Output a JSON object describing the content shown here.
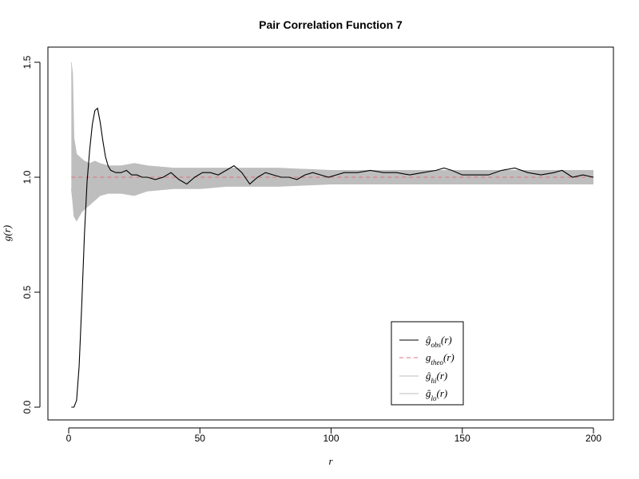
{
  "chart_data": {
    "type": "line",
    "title": "Pair Correlation Function 7",
    "xlabel": "r",
    "ylabel": "g(r)",
    "xlim": [
      0,
      200
    ],
    "ylim": [
      0,
      1.5
    ],
    "x_ticks": [
      0,
      50,
      100,
      150,
      200
    ],
    "x_tick_labels": [
      "0",
      "50",
      "100",
      "150",
      "200"
    ],
    "y_ticks": [
      0.0,
      0.5,
      1.0,
      1.5
    ],
    "y_tick_labels": [
      "0.0",
      "0.5",
      "1.0",
      "1.5"
    ],
    "grid": false,
    "legend_position": "bottom-right",
    "series": [
      {
        "name": "ĝobs(r)",
        "legend_main": "ĝ",
        "legend_sub": "obs",
        "legend_suffix": "(r)",
        "color": "#000000",
        "style": "solid",
        "x": [
          1,
          2,
          3,
          4,
          5,
          6,
          7,
          8,
          9,
          10,
          11,
          12,
          13,
          14,
          15,
          16,
          18,
          20,
          22,
          24,
          26,
          28,
          30,
          33,
          36,
          39,
          42,
          45,
          48,
          51,
          54,
          57,
          60,
          63,
          66,
          69,
          72,
          75,
          78,
          81,
          84,
          87,
          90,
          93,
          96,
          99,
          102,
          105,
          110,
          115,
          120,
          125,
          130,
          135,
          140,
          143,
          146,
          150,
          155,
          160,
          165,
          170,
          175,
          180,
          185,
          188,
          192,
          196,
          200
        ],
        "y": [
          0.0,
          0.0,
          0.03,
          0.18,
          0.45,
          0.75,
          0.98,
          1.12,
          1.23,
          1.29,
          1.3,
          1.24,
          1.16,
          1.09,
          1.05,
          1.03,
          1.02,
          1.02,
          1.03,
          1.01,
          1.01,
          1.0,
          1.0,
          0.99,
          1.0,
          1.02,
          0.99,
          0.97,
          1.0,
          1.02,
          1.02,
          1.01,
          1.03,
          1.05,
          1.02,
          0.97,
          1.0,
          1.02,
          1.01,
          1.0,
          1.0,
          0.99,
          1.01,
          1.02,
          1.01,
          1.0,
          1.01,
          1.02,
          1.02,
          1.03,
          1.02,
          1.02,
          1.01,
          1.02,
          1.03,
          1.04,
          1.03,
          1.01,
          1.01,
          1.01,
          1.03,
          1.04,
          1.02,
          1.01,
          1.02,
          1.03,
          1.0,
          1.01,
          1.0
        ]
      },
      {
        "name": "gtheo(r)",
        "legend_main": "g",
        "legend_sub": "theo",
        "legend_suffix": "(r)",
        "color": "#e0707b",
        "style": "dashed",
        "x": [
          1,
          200
        ],
        "y": [
          1.0,
          1.0
        ]
      },
      {
        "name": "ĝhi(r)",
        "legend_main": "ĝ",
        "legend_sub": "hi",
        "legend_suffix": "(r)",
        "color": "#bebebe",
        "style": "solid",
        "x": [
          1,
          1.5,
          2,
          3,
          4,
          5,
          6,
          8,
          10,
          12,
          15,
          20,
          25,
          30,
          40,
          50,
          60,
          80,
          100,
          120,
          150,
          180,
          200
        ],
        "y": [
          1.5,
          1.45,
          1.17,
          1.1,
          1.09,
          1.08,
          1.07,
          1.06,
          1.07,
          1.06,
          1.05,
          1.05,
          1.06,
          1.05,
          1.04,
          1.04,
          1.04,
          1.04,
          1.03,
          1.03,
          1.03,
          1.03,
          1.03
        ]
      },
      {
        "name": "ĝlo(r)",
        "legend_main": "ĝ",
        "legend_sub": "lo",
        "legend_suffix": "(r)",
        "color": "#bebebe",
        "style": "solid",
        "x": [
          1,
          1.5,
          2,
          3,
          4,
          5,
          6,
          8,
          10,
          12,
          15,
          20,
          25,
          30,
          40,
          50,
          60,
          80,
          100,
          120,
          150,
          180,
          200
        ],
        "y": [
          0.95,
          0.9,
          0.83,
          0.81,
          0.83,
          0.85,
          0.86,
          0.88,
          0.9,
          0.92,
          0.93,
          0.93,
          0.92,
          0.94,
          0.95,
          0.95,
          0.96,
          0.96,
          0.97,
          0.97,
          0.97,
          0.97,
          0.97
        ]
      }
    ]
  }
}
